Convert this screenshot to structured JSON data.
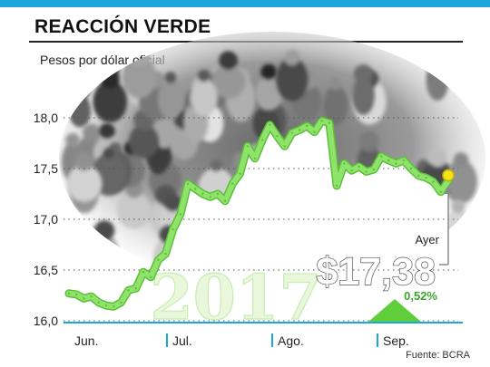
{
  "header": {
    "title": "REACCIÓN VERDE",
    "subtitle": "Pesos por dólar oficial",
    "source": "Fuente: BCRA"
  },
  "callout": {
    "label": "Ayer",
    "price": "$17,38",
    "change": "0,52%",
    "watermark_year": "2017"
  },
  "colors": {
    "line": "#8fe36a",
    "line_edge": "#5cbf3a",
    "endpoint": "#f4e21b",
    "accent": "#1aa7dc",
    "up_arrow": "#5fce3a"
  },
  "chart_data": {
    "type": "line",
    "title": "REACCIÓN VERDE",
    "ylabel": "Pesos por dólar oficial",
    "xlabel": "",
    "ylim": [
      16.0,
      18.0
    ],
    "y_ticks": [
      16.0,
      16.5,
      17.0,
      17.5,
      18.0
    ],
    "y_tick_labels": [
      "16,0",
      "16,5",
      "17,0",
      "17,5",
      "18,0"
    ],
    "x_tick_labels": [
      "Jun.",
      "Jul.",
      "Ago.",
      "Sep."
    ],
    "grid": "dotted horizontal",
    "series": [
      {
        "values": [
          16.27,
          16.26,
          16.22,
          16.24,
          16.18,
          16.15,
          16.14,
          16.18,
          16.3,
          16.32,
          16.48,
          16.43,
          16.6,
          16.66,
          16.9,
          17.05,
          17.35,
          17.3,
          17.25,
          17.22,
          17.25,
          17.18,
          17.35,
          17.45,
          17.72,
          17.6,
          17.78,
          17.93,
          17.82,
          17.72,
          17.85,
          17.88,
          17.92,
          17.86,
          17.97,
          17.95,
          17.33,
          17.55,
          17.48,
          17.52,
          17.47,
          17.49,
          17.62,
          17.58,
          17.55,
          17.58,
          17.5,
          17.43,
          17.41,
          17.37,
          17.27,
          17.38
        ]
      }
    ]
  }
}
